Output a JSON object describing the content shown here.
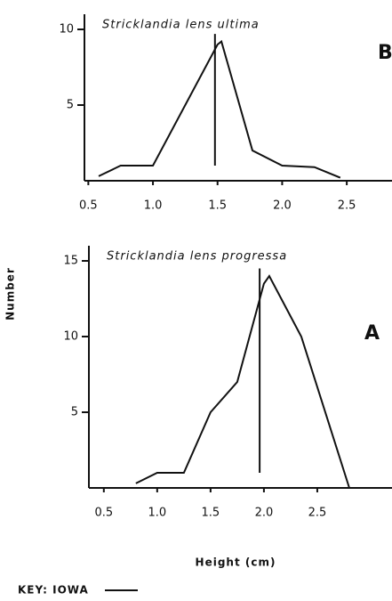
{
  "chart_data": [
    {
      "type": "line",
      "title": "Stricklandia lens ultima",
      "panel": "B",
      "x": [
        0.58,
        0.75,
        1.0,
        1.5,
        1.53,
        1.77,
        2.0,
        2.25,
        2.45
      ],
      "values": [
        0.3,
        1,
        1,
        9,
        9.2,
        2,
        1,
        0.9,
        0.2
      ],
      "mean_line_x": 1.48,
      "mean_line_y": [
        1,
        9.7
      ],
      "xlim": [
        0.47,
        2.85
      ],
      "ylim": [
        0,
        11
      ],
      "xticks": [
        0.5,
        {
          "value": 1,
          "label": "1.0"
        },
        1.5,
        {
          "value": 2,
          "label": "2.0"
        },
        2.5
      ],
      "yticks": [
        5,
        10
      ],
      "color": "#111"
    },
    {
      "type": "line",
      "title": "Stricklandia lens progressa",
      "panel": "A",
      "x": [
        0.8,
        1.0,
        1.25,
        1.5,
        1.75,
        2.0,
        2.05,
        2.35,
        2.8
      ],
      "values": [
        0.3,
        1,
        1,
        5,
        7,
        13.5,
        14,
        10,
        0
      ],
      "mean_line_x": 1.96,
      "mean_line_y": [
        1,
        14.5
      ],
      "xlim": [
        0.36,
        3.2
      ],
      "ylim": [
        0,
        16
      ],
      "xticks": [
        0.5,
        {
          "value": 1,
          "label": "1.0"
        },
        1.5,
        {
          "value": 2,
          "label": "2.0"
        },
        2.5
      ],
      "yticks": [
        5,
        10,
        15
      ],
      "color": "#111"
    }
  ],
  "y_label": "Number",
  "x_label": "Height (cm)",
  "key": "KEY:  IOWA"
}
